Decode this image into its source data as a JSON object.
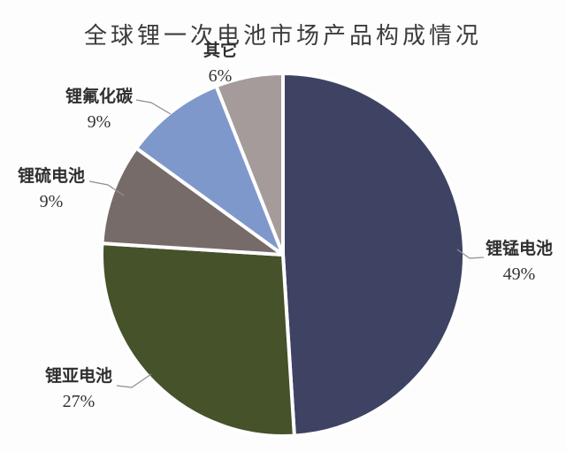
{
  "chart_data": {
    "type": "pie",
    "title": "全球锂一次电池市场产品构成情况",
    "series": [
      {
        "id": "manganese",
        "name": "锂锰电池",
        "value": 49,
        "pct_label": "49%",
        "color": "#3E4363"
      },
      {
        "id": "sub",
        "name": "锂亚电池",
        "value": 27,
        "pct_label": "27%",
        "color": "#45522A"
      },
      {
        "id": "sulfur",
        "name": "锂硫电池",
        "value": 9,
        "pct_label": "9%",
        "color": "#776B69"
      },
      {
        "id": "fluoride",
        "name": "锂氟化碳",
        "value": 9,
        "pct_label": "9%",
        "color": "#7F98CC"
      },
      {
        "id": "other",
        "name": "其它",
        "value": 6,
        "pct_label": "6%",
        "color": "#A49B9A"
      }
    ],
    "layout": {
      "start_angle_deg": 0,
      "direction": "clockwise",
      "labels_position": "outside-with-leader-lines",
      "legend": "none",
      "slice_border_color": "#FFFFFF",
      "leader_line_color": "#8F8F8F",
      "background": "#FDFDFD"
    }
  }
}
